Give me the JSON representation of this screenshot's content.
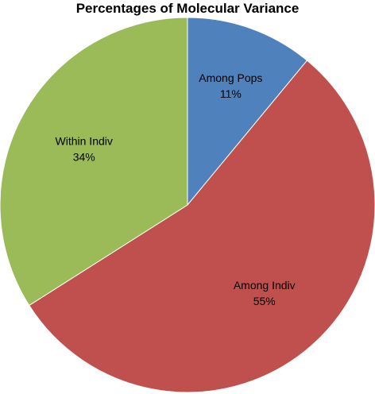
{
  "chart_data": {
    "type": "pie",
    "title": "Percentages of Molecular Variance",
    "slices": [
      {
        "label": "Among Pops",
        "value": 11,
        "value_label": "11%",
        "color": "#4F81BD"
      },
      {
        "label": "Among Indiv",
        "value": 55,
        "value_label": "55%",
        "color": "#C0504D"
      },
      {
        "label": "Within Indiv",
        "value": 34,
        "value_label": "34%",
        "color": "#9BBB59"
      }
    ],
    "start_angle": "12 o'clock",
    "direction": "clockwise",
    "legend": "none",
    "data_labels": "inside"
  }
}
